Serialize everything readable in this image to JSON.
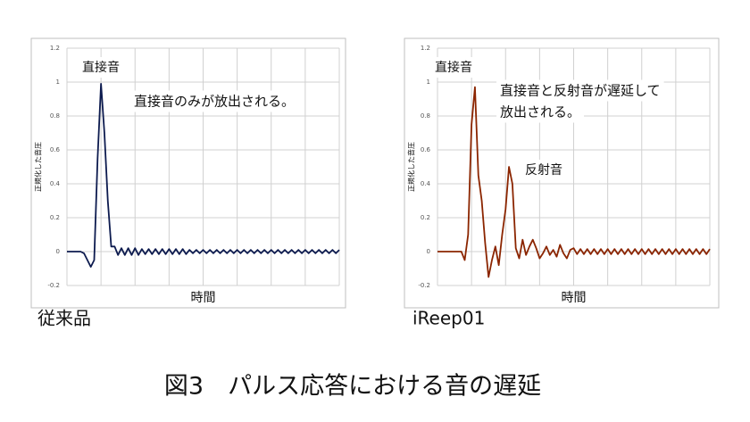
{
  "caption": "図3　パルス応答における音の遅延",
  "chart_data": [
    {
      "type": "line",
      "caption": "従来品",
      "ylabel": "正規化した音圧",
      "xlabel": "時間",
      "annotations": [
        "直接音",
        "直接音のみが放出される。"
      ],
      "ylim": [
        -0.2,
        1.2
      ],
      "yticks": [
        -0.2,
        0,
        0.2,
        0.4,
        0.6,
        0.8,
        1,
        1.2
      ],
      "grid": true,
      "series": [
        {
          "name": null,
          "color": "#0d1b4f",
          "values": [
            0,
            0,
            0,
            0,
            0,
            -0.01,
            -0.05,
            -0.09,
            -0.05,
            0.55,
            0.99,
            0.7,
            0.3,
            0.03,
            0.03,
            -0.02,
            0.02,
            -0.02,
            0.02,
            -0.02,
            0.02,
            -0.02,
            0.015,
            -0.015,
            0.015,
            -0.015,
            0.015,
            -0.015,
            0.015,
            -0.015,
            0.015,
            -0.015,
            0.015,
            -0.015,
            0.015,
            -0.015,
            0.01,
            -0.01,
            0.01,
            -0.01,
            0.01,
            -0.01,
            0.01,
            -0.01,
            0.01,
            -0.01,
            0.01,
            -0.01,
            0.01,
            -0.01,
            0.01,
            -0.01,
            0.01,
            -0.01,
            0.01,
            -0.01,
            0.01,
            -0.01,
            0.01,
            -0.01,
            0.01,
            -0.01,
            0.01,
            -0.01,
            0.01,
            -0.01,
            0.01,
            -0.01,
            0.01,
            -0.01,
            0.01,
            -0.01,
            0.01,
            -0.01,
            0.01,
            -0.01,
            0.01,
            -0.01,
            0.01,
            -0.01,
            0.01
          ]
        }
      ]
    },
    {
      "type": "line",
      "caption": "iReep01",
      "ylabel": "正規化した音圧",
      "xlabel": "時間",
      "annotations": [
        "直接音",
        "直接音と反射音が遅延して",
        "放出される。",
        "反射音"
      ],
      "ylim": [
        -0.2,
        1.2
      ],
      "yticks": [
        -0.2,
        0,
        0.2,
        0.4,
        0.6,
        0.8,
        1,
        1.2
      ],
      "grid": true,
      "series": [
        {
          "name": null,
          "color": "#8b2500",
          "values": [
            0,
            0,
            0,
            0,
            0,
            0,
            0,
            0,
            -0.05,
            0.1,
            0.75,
            0.97,
            0.45,
            0.3,
            0.05,
            -0.15,
            -0.05,
            0.03,
            -0.08,
            0.1,
            0.25,
            0.5,
            0.4,
            0.02,
            -0.04,
            0.07,
            -0.02,
            0.03,
            0.07,
            0.02,
            -0.04,
            -0.01,
            0.03,
            -0.02,
            0.01,
            -0.03,
            0.04,
            -0.01,
            -0.04,
            0.01,
            0.02,
            -0.015,
            0.015,
            -0.015,
            0.015,
            -0.015,
            0.015,
            -0.015,
            0.015,
            -0.015,
            0.015,
            -0.015,
            0.015,
            -0.015,
            0.015,
            -0.015,
            0.015,
            -0.015,
            0.015,
            -0.015,
            0.015,
            -0.015,
            0.015,
            -0.015,
            0.015,
            -0.015,
            0.015,
            -0.015,
            0.015,
            -0.015,
            0.015,
            -0.015,
            0.015,
            -0.015,
            0.015,
            -0.015,
            0.015,
            -0.015,
            0.015,
            -0.015,
            0.015
          ]
        }
      ]
    }
  ]
}
